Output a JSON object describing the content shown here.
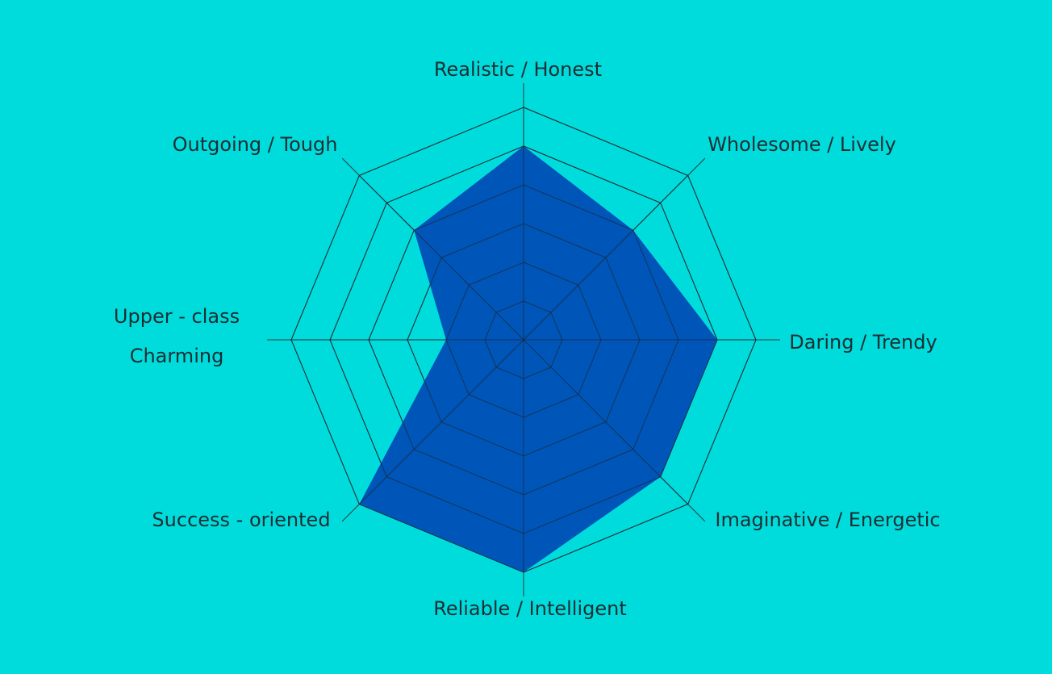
{
  "chart_data": {
    "type": "radar",
    "axes": [
      {
        "label": [
          "Realistic / Honest"
        ],
        "value": 5
      },
      {
        "label": [
          "Wholesome / Lively"
        ],
        "value": 4
      },
      {
        "label": [
          "Daring / Trendy"
        ],
        "value": 5
      },
      {
        "label": [
          "Imaginative / Energetic"
        ],
        "value": 5
      },
      {
        "label": [
          "Reliable / Intelligent"
        ],
        "value": 6
      },
      {
        "label": [
          "Success - oriented"
        ],
        "value": 6
      },
      {
        "label": [
          "Upper - class",
          "Charming"
        ],
        "value": 2
      },
      {
        "label": [
          "Outgoing / Tough"
        ],
        "value": 4
      }
    ],
    "scale_max": 6,
    "rings": 6,
    "fill_color": "#0055b8",
    "grid_color": "#2a3a3a",
    "background_color": "#00dcdc"
  }
}
